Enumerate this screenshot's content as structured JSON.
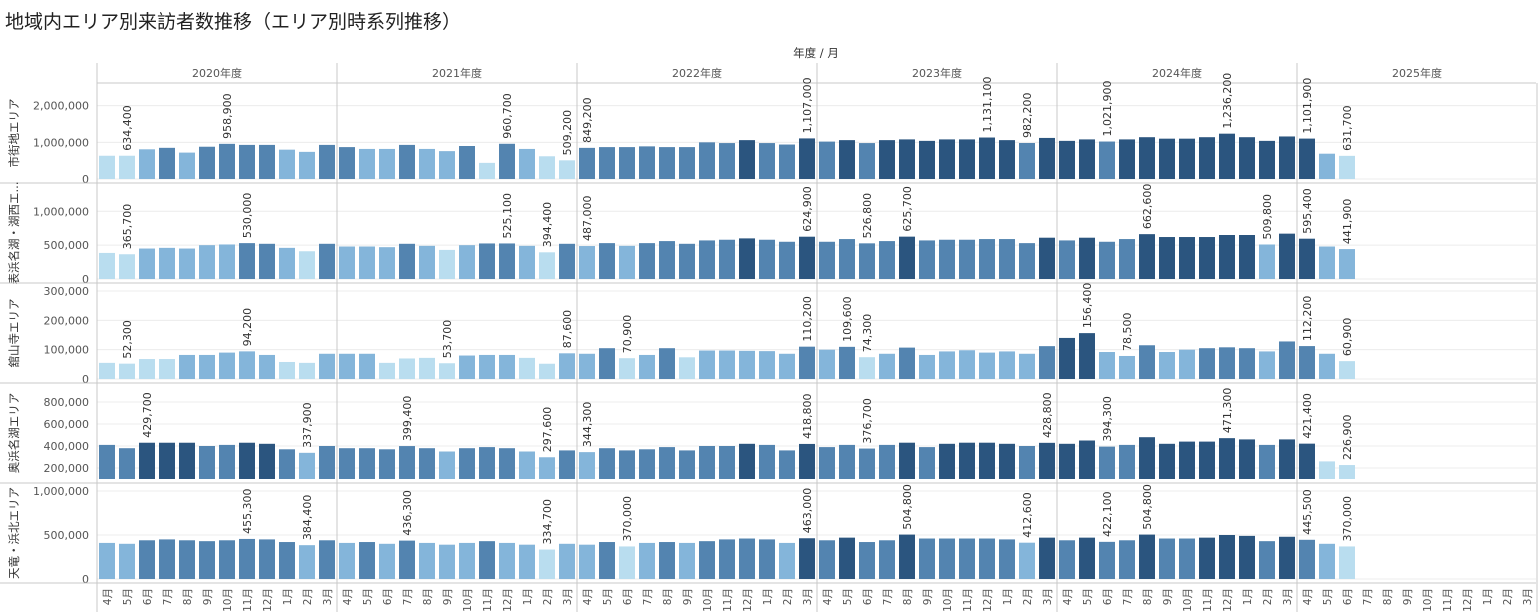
{
  "page": {
    "title": "地域内エリア別来訪者数推移（エリア別時系列推移）"
  },
  "chart_data": {
    "type": "bar",
    "title": "地域内エリア別来訪者数推移（エリア別時系列推移）",
    "column_header": "年度 / 月",
    "years": [
      "2020年度",
      "2021年度",
      "2022年度",
      "2023年度",
      "2024年度",
      "2025年度"
    ],
    "months": [
      "4月",
      "5月",
      "6月",
      "7月",
      "8月",
      "9月",
      "10月",
      "11月",
      "12月",
      "1月",
      "2月",
      "3月"
    ],
    "color_scale": [
      "#b9ddef",
      "#84b5da",
      "#5384b0",
      "#2b557f"
    ],
    "areas": [
      {
        "name": "市街地エリア",
        "ylim": [
          0,
          2400000
        ],
        "ticks": [
          0,
          1000000,
          2000000
        ],
        "tick_labels": [
          "0",
          "1,000,000",
          "2,000,000"
        ],
        "values": [
          [
            634000,
            634400,
            810000,
            850000,
            720000,
            880000,
            958900,
            930000,
            930000,
            800000,
            740000,
            930000
          ],
          [
            870000,
            820000,
            820000,
            930000,
            820000,
            760000,
            900000,
            440000,
            960700,
            820000,
            620000,
            509200
          ],
          [
            849200,
            870000,
            870000,
            890000,
            870000,
            870000,
            1000000,
            980000,
            1060000,
            980000,
            940000,
            1107000
          ],
          [
            1020000,
            1060000,
            980000,
            1060000,
            1080000,
            1040000,
            1080000,
            1080000,
            1131100,
            1060000,
            982200,
            1120000
          ],
          [
            1040000,
            1080000,
            1021900,
            1080000,
            1140000,
            1100000,
            1100000,
            1140000,
            1236200,
            1140000,
            1040000,
            1160000
          ],
          [
            1101900,
            690000,
            631700,
            null,
            null,
            null,
            null,
            null,
            null,
            null,
            null,
            null
          ]
        ],
        "labels": [
          [
            "",
            "634,400",
            "",
            "",
            "",
            "",
            "958,900",
            "",
            "",
            "",
            "",
            ""
          ],
          [
            "",
            "",
            "",
            "",
            "",
            "",
            "",
            "",
            "960,700",
            "",
            "",
            "509,200"
          ],
          [
            "849,200",
            "",
            "",
            "",
            "",
            "",
            "",
            "",
            "",
            "",
            "",
            "1,107,000"
          ],
          [
            "",
            "",
            "",
            "",
            "",
            "",
            "",
            "",
            "1,131,100",
            "",
            "982,200",
            ""
          ],
          [
            "",
            "",
            "1,021,900",
            "",
            "",
            "",
            "",
            "",
            "1,236,200",
            "",
            "",
            ""
          ],
          [
            "1,101,900",
            "",
            "631,700",
            "",
            "",
            "",
            "",
            "",
            "",
            "",
            "",
            ""
          ]
        ]
      },
      {
        "name": "表浜名湖・湖西エ...",
        "ylim": [
          0,
          1300000
        ],
        "ticks": [
          0,
          500000,
          1000000
        ],
        "tick_labels": [
          "0",
          "500,000",
          "1,000,000"
        ],
        "values": [
          [
            385000,
            365700,
            450000,
            460000,
            450000,
            500000,
            510000,
            530000,
            520000,
            460000,
            410000,
            520000
          ],
          [
            480000,
            480000,
            470000,
            520000,
            490000,
            430000,
            500000,
            525100,
            525100,
            490000,
            394400,
            520000
          ],
          [
            487000,
            530000,
            490000,
            530000,
            560000,
            520000,
            570000,
            580000,
            600000,
            580000,
            550000,
            624900
          ],
          [
            550000,
            590000,
            526800,
            560000,
            625700,
            570000,
            580000,
            580000,
            590000,
            590000,
            530000,
            610000
          ],
          [
            570000,
            610000,
            550000,
            590000,
            662600,
            620000,
            620000,
            620000,
            650000,
            650000,
            509800,
            670000
          ],
          [
            595400,
            480000,
            441900,
            null,
            null,
            null,
            null,
            null,
            null,
            null,
            null,
            null
          ]
        ],
        "labels": [
          [
            "",
            "365,700",
            "",
            "",
            "",
            "",
            "",
            "530,000",
            "",
            "",
            "",
            ""
          ],
          [
            "",
            "",
            "",
            "",
            "",
            "",
            "",
            "",
            "525,100",
            "",
            "394,400",
            ""
          ],
          [
            "487,000",
            "",
            "",
            "",
            "",
            "",
            "",
            "",
            "",
            "",
            "",
            "624,900"
          ],
          [
            "",
            "",
            "526,800",
            "",
            "625,700",
            "",
            "",
            "",
            "",
            "",
            "",
            ""
          ],
          [
            "",
            "",
            "",
            "",
            "662,600",
            "",
            "",
            "",
            "",
            "",
            "509,800",
            ""
          ],
          [
            "595,400",
            "",
            "441,900",
            "",
            "",
            "",
            "",
            "",
            "",
            "",
            "",
            ""
          ]
        ]
      },
      {
        "name": "舘山寺エリア",
        "ylim": [
          0,
          300000
        ],
        "ticks": [
          0,
          100000,
          200000,
          300000
        ],
        "tick_labels": [
          "0",
          "100,000",
          "200,000",
          "300,000"
        ],
        "values": [
          [
            55000,
            52300,
            68000,
            68000,
            82000,
            82000,
            90000,
            94200,
            82000,
            58000,
            55000,
            86000
          ],
          [
            86000,
            86000,
            55000,
            70000,
            72000,
            53700,
            80000,
            82000,
            82000,
            72000,
            52000,
            87600
          ],
          [
            86000,
            105000,
            70900,
            82000,
            105000,
            74000,
            97000,
            97000,
            96000,
            95000,
            86000,
            110200
          ],
          [
            100000,
            109600,
            74300,
            86000,
            107000,
            82000,
            94000,
            98000,
            90000,
            94000,
            86000,
            112000
          ],
          [
            140000,
            156400,
            92000,
            78500,
            115000,
            92000,
            100000,
            105000,
            108000,
            105000,
            94000,
            128000
          ],
          [
            112200,
            86000,
            60900,
            null,
            null,
            null,
            null,
            null,
            null,
            null,
            null,
            null
          ]
        ],
        "labels": [
          [
            "",
            "52,300",
            "",
            "",
            "",
            "",
            "",
            "94,200",
            "",
            "",
            "",
            ""
          ],
          [
            "",
            "",
            "",
            "",
            "",
            "53,700",
            "",
            "",
            "",
            "",
            "",
            "87,600"
          ],
          [
            "",
            "",
            "70,900",
            "",
            "",
            "",
            "",
            "",
            "",
            "",
            "",
            "110,200"
          ],
          [
            "",
            "109,600",
            "74,300",
            "",
            "",
            "",
            "",
            "",
            "",
            "",
            "",
            ""
          ],
          [
            "",
            "156,400",
            "",
            "78,500",
            "",
            "",
            "",
            "",
            "",
            "",
            "",
            ""
          ],
          [
            "112,200",
            "",
            "60,900",
            "",
            "",
            "",
            "",
            "",
            "",
            "",
            "",
            ""
          ]
        ]
      },
      {
        "name": "奥浜名湖エリア",
        "ylim": [
          100000,
          900000
        ],
        "ticks": [
          200000,
          400000,
          600000,
          800000
        ],
        "tick_labels": [
          "200,000",
          "400,000",
          "600,000",
          "800,000"
        ],
        "values": [
          [
            410000,
            380000,
            429700,
            429700,
            429700,
            400000,
            410000,
            429700,
            420000,
            370000,
            337900,
            400000
          ],
          [
            380000,
            380000,
            370000,
            399400,
            380000,
            350000,
            380000,
            390000,
            380000,
            350000,
            297600,
            360000
          ],
          [
            344300,
            380000,
            360000,
            370000,
            390000,
            360000,
            400000,
            400000,
            420000,
            410000,
            360000,
            418800
          ],
          [
            390000,
            410000,
            376700,
            410000,
            430000,
            390000,
            420000,
            430000,
            430000,
            420000,
            400000,
            428800
          ],
          [
            420000,
            450000,
            394300,
            410000,
            480000,
            420000,
            440000,
            440000,
            471300,
            460000,
            410000,
            460000
          ],
          [
            421400,
            260000,
            226900,
            null,
            null,
            null,
            null,
            null,
            null,
            null,
            null,
            null
          ]
        ],
        "labels": [
          [
            "",
            "",
            "429,700",
            "",
            "",
            "",
            "",
            "",
            "",
            "",
            "337,900",
            ""
          ],
          [
            "",
            "",
            "",
            "399,400",
            "",
            "",
            "",
            "",
            "",
            "",
            "297,600",
            ""
          ],
          [
            "344,300",
            "",
            "",
            "",
            "",
            "",
            "",
            "",
            "",
            "",
            "",
            "418,800"
          ],
          [
            "",
            "",
            "376,700",
            "",
            "",
            "",
            "",
            "",
            "",
            "",
            "",
            "428,800"
          ],
          [
            "",
            "",
            "394,300",
            "",
            "",
            "",
            "",
            "",
            "471,300",
            "",
            "",
            ""
          ],
          [
            "421,400",
            "",
            "226,900",
            "",
            "",
            "",
            "",
            "",
            "",
            "",
            "",
            ""
          ]
        ]
      },
      {
        "name": "天竜・浜北エリア",
        "ylim": [
          0,
          1000000
        ],
        "ticks": [
          0,
          500000,
          1000000
        ],
        "tick_labels": [
          "0",
          "500,000",
          "1,000,000"
        ],
        "values": [
          [
            410000,
            400000,
            440000,
            450000,
            440000,
            430000,
            440000,
            455300,
            450000,
            420000,
            384400,
            440000
          ],
          [
            410000,
            420000,
            400000,
            436300,
            410000,
            390000,
            410000,
            430000,
            410000,
            390000,
            334700,
            400000
          ],
          [
            390000,
            420000,
            370000,
            410000,
            420000,
            410000,
            430000,
            450000,
            460000,
            450000,
            410000,
            463000
          ],
          [
            440000,
            470000,
            420000,
            440000,
            504800,
            460000,
            460000,
            460000,
            460000,
            450000,
            412600,
            470000
          ],
          [
            440000,
            470000,
            422100,
            440000,
            504800,
            460000,
            460000,
            470000,
            500000,
            490000,
            430000,
            480000
          ],
          [
            445500,
            400000,
            370000,
            null,
            null,
            null,
            null,
            null,
            null,
            null,
            null,
            null
          ]
        ],
        "labels": [
          [
            "",
            "",
            "",
            "",
            "",
            "",
            "",
            "455,300",
            "",
            "",
            "384,400",
            ""
          ],
          [
            "",
            "",
            "",
            "436,300",
            "",
            "",
            "",
            "",
            "",
            "",
            "334,700",
            ""
          ],
          [
            "",
            "",
            "370,000",
            "",
            "",
            "",
            "",
            "",
            "",
            "",
            "",
            "463,000"
          ],
          [
            "",
            "",
            "",
            "",
            "504,800",
            "",
            "",
            "",
            "",
            "",
            "412,600",
            ""
          ],
          [
            "",
            "",
            "422,100",
            "",
            "504,800",
            "",
            "",
            "",
            "",
            "",
            "",
            ""
          ],
          [
            "445,500",
            "",
            "370,000",
            "",
            "",
            "",
            "",
            "",
            "",
            "",
            "",
            ""
          ]
        ]
      }
    ]
  }
}
